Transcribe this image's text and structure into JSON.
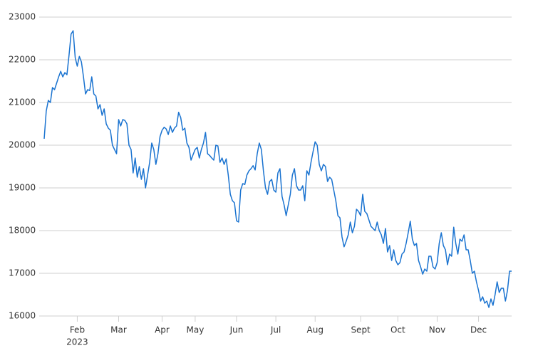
{
  "chart_data": {
    "type": "line",
    "series": [
      {
        "color": "#1a73d0",
        "values": [
          20150,
          20800,
          21050,
          21000,
          21350,
          21300,
          21450,
          21600,
          21730,
          21600,
          21700,
          21650,
          22100,
          22600,
          22680,
          22050,
          21850,
          22080,
          21950,
          21600,
          21200,
          21300,
          21280,
          21600,
          21200,
          21150,
          20850,
          20950,
          20700,
          20850,
          20500,
          20400,
          20350,
          20000,
          19900,
          19800,
          20600,
          20450,
          20600,
          20580,
          20500,
          20000,
          19900,
          19350,
          19700,
          19250,
          19500,
          19200,
          19450,
          19000,
          19300,
          19600,
          20050,
          19900,
          19550,
          19800,
          20200,
          20350,
          20420,
          20380,
          20250,
          20450,
          20300,
          20400,
          20450,
          20770,
          20650,
          20350,
          20400,
          20050,
          19950,
          19650,
          19780,
          19900,
          19950,
          19700,
          19900,
          20050,
          20300,
          19800,
          19760,
          19700,
          19650,
          20000,
          19980,
          19600,
          19700,
          19550,
          19680,
          19300,
          18850,
          18700,
          18650,
          18230,
          18200,
          18950,
          19100,
          19080,
          19300,
          19400,
          19450,
          19520,
          19420,
          19800,
          20050,
          19900,
          19400,
          19000,
          18850,
          19150,
          19200,
          18950,
          18900,
          19350,
          19450,
          18800,
          18600,
          18350,
          18600,
          18850,
          19300,
          19450,
          19050,
          18950,
          18950,
          19050,
          18700,
          19400,
          19300,
          19600,
          19850,
          20080,
          20000,
          19550,
          19400,
          19550,
          19500,
          19150,
          19250,
          19200,
          18950,
          18700,
          18350,
          18300,
          17850,
          17620,
          17750,
          17900,
          18200,
          17950,
          18100,
          18500,
          18450,
          18350,
          18850,
          18450,
          18400,
          18250,
          18100,
          18050,
          18000,
          18200,
          18000,
          17900,
          17700,
          18050,
          17500,
          17650,
          17300,
          17550,
          17300,
          17200,
          17250,
          17450,
          17500,
          17700,
          17950,
          18220,
          17800,
          17650,
          17700,
          17300,
          17150,
          16980,
          17100,
          17050,
          17400,
          17400,
          17150,
          17100,
          17250,
          17700,
          17950,
          17650,
          17550,
          17200,
          17450,
          17400,
          18080,
          17700,
          17450,
          17800,
          17750,
          17900,
          17550,
          17550,
          17300,
          17000,
          17050,
          16800,
          16600,
          16350,
          16450,
          16300,
          16350,
          16200,
          16400,
          16250,
          16500,
          16800,
          16550,
          16650,
          16650,
          16350,
          16600,
          17050,
          17050
        ]
      }
    ],
    "xlim": [
      0,
      226
    ],
    "xticks": [
      {
        "value": 16,
        "label": "Feb"
      },
      {
        "value": 36,
        "label": "Mar"
      },
      {
        "value": 57,
        "label": "Apr"
      },
      {
        "value": 73,
        "label": "May"
      },
      {
        "value": 93,
        "label": "Jun"
      },
      {
        "value": 112,
        "label": "Jul"
      },
      {
        "value": 131,
        "label": "Aug"
      },
      {
        "value": 153,
        "label": "Sept"
      },
      {
        "value": 171,
        "label": "Oct"
      },
      {
        "value": 190,
        "label": "Nov"
      },
      {
        "value": 210,
        "label": "Dec"
      }
    ],
    "year_label": "2023",
    "ylim": [
      16000,
      23000
    ],
    "yticks": [
      16000,
      17000,
      18000,
      19000,
      20000,
      21000,
      22000,
      23000
    ],
    "grid": true
  }
}
